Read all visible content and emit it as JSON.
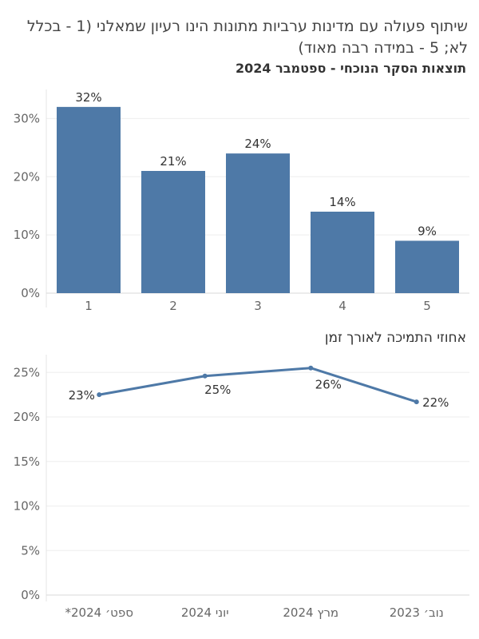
{
  "title": "שיתוף פעולה עם מדינות ערביות מתונות הינו רעיון שמאלני (1 - בכלל לא; 5 - במידה רבה מאוד)",
  "chart_data": [
    {
      "type": "bar",
      "subtitle": "תוצאות הסקר הנוכחי - ספטמבר 2024",
      "categories": [
        "1",
        "2",
        "3",
        "4",
        "5"
      ],
      "values": [
        32,
        21,
        24,
        14,
        9
      ],
      "value_labels": [
        "32%",
        "21%",
        "24%",
        "14%",
        "9%"
      ],
      "ylim": [
        0,
        35
      ],
      "yticks": [
        0,
        10,
        20,
        30
      ],
      "ytick_labels": [
        "0%",
        "10%",
        "20%",
        "30%"
      ],
      "color": "#4e79a7",
      "grid": true
    },
    {
      "type": "line",
      "title": "אחוזי התמיכה לאורך זמן",
      "categories": [
        "ספט׳ 2024*",
        "יוני 2024",
        "מרץ 2024",
        "נוב׳ 2023"
      ],
      "values": [
        22.5,
        24.6,
        25.5,
        21.7
      ],
      "value_labels": [
        "23%",
        "25%",
        "26%",
        "22%"
      ],
      "ylim": [
        0,
        27
      ],
      "yticks": [
        0,
        5,
        10,
        15,
        20,
        25
      ],
      "ytick_labels": [
        "0%",
        "5%",
        "10%",
        "15%",
        "20%",
        "25%"
      ],
      "color": "#4e79a7",
      "grid": true
    }
  ]
}
